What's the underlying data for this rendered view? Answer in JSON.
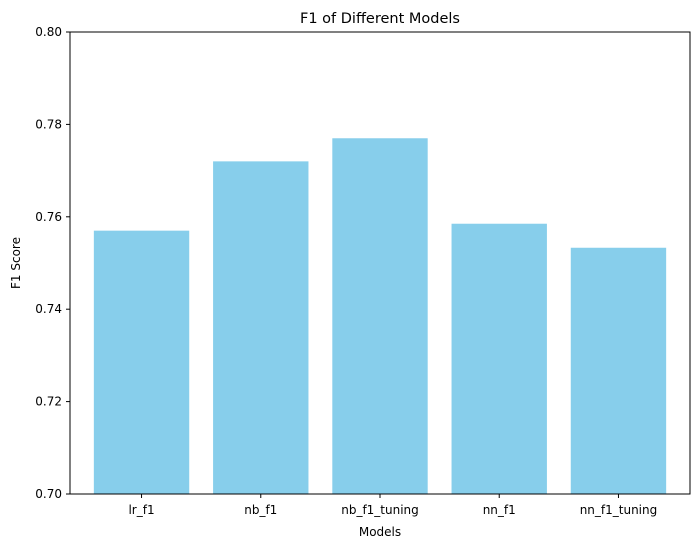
{
  "chart_data": {
    "type": "bar",
    "title": "F1 of Different Models",
    "xlabel": "Models",
    "ylabel": "F1 Score",
    "categories": [
      "lr_f1",
      "nb_f1",
      "nb_f1_tuning",
      "nn_f1",
      "nn_f1_tuning"
    ],
    "values": [
      0.757,
      0.772,
      0.777,
      0.7585,
      0.7533
    ],
    "ylim": [
      0.7,
      0.8
    ],
    "yticks": [
      "0.70",
      "0.72",
      "0.74",
      "0.76",
      "0.78",
      "0.80"
    ],
    "grid": false,
    "bar_color": "#87ceeb"
  }
}
